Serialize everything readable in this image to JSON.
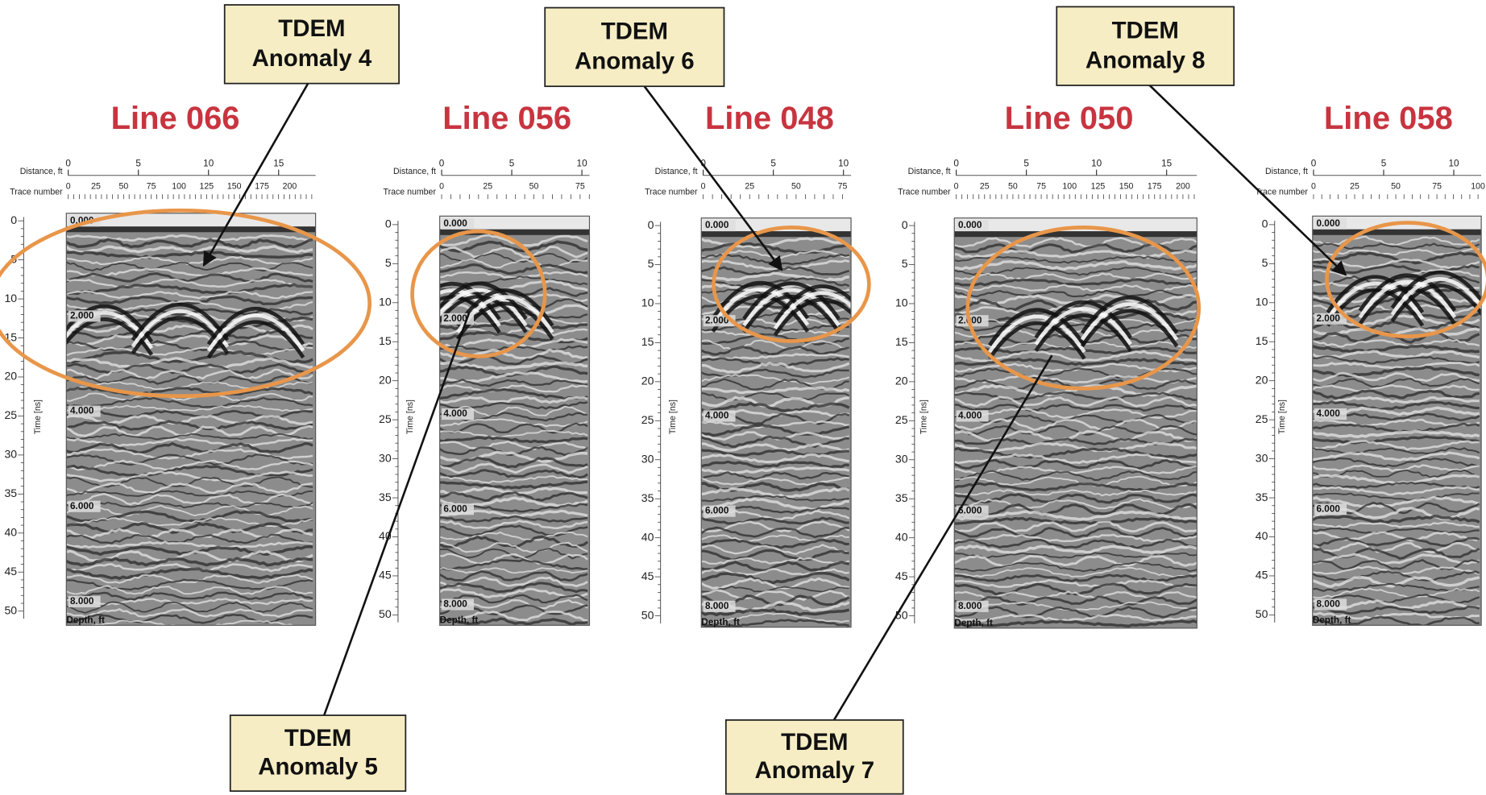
{
  "panels": [
    {
      "title": "Line 066",
      "distance_label": "Distance, ft",
      "distance_ticks": [
        0,
        5,
        10,
        15
      ],
      "trace_label": "Trace number",
      "trace_ticks": [
        0,
        25,
        50,
        75,
        100,
        125,
        150,
        175,
        200
      ],
      "time_label": "Time [ns]",
      "time_ticks": [
        0,
        5,
        10,
        15,
        20,
        25,
        30,
        35,
        40,
        45,
        50
      ],
      "depth_ticks": [
        "0.000",
        "2.000",
        "4.000",
        "6.000",
        "8.000"
      ],
      "depth_label": "Depth, ft"
    },
    {
      "title": "Line 056",
      "distance_label": "Distance, ft",
      "distance_ticks": [
        0,
        5,
        10
      ],
      "trace_label": "Trace number",
      "trace_ticks": [
        0,
        25,
        50,
        75
      ],
      "time_label": "Time [ns]",
      "time_ticks": [
        0,
        5,
        10,
        15,
        20,
        25,
        30,
        35,
        40,
        45,
        50
      ],
      "depth_ticks": [
        "0.000",
        "2.000",
        "4.000",
        "6.000",
        "8.000"
      ],
      "depth_label": "Depth, ft"
    },
    {
      "title": "Line 048",
      "distance_label": "Distance, ft",
      "distance_ticks": [
        0,
        5,
        10
      ],
      "trace_label": "Trace number",
      "trace_ticks": [
        0,
        25,
        50,
        75
      ],
      "time_label": "Time [ns]",
      "time_ticks": [
        0,
        5,
        10,
        15,
        20,
        25,
        30,
        35,
        40,
        45,
        50
      ],
      "depth_ticks": [
        "0.000",
        "2.000",
        "4.000",
        "6.000",
        "8.000"
      ],
      "depth_label": "Depth, ft"
    },
    {
      "title": "Line 050",
      "distance_label": "Distance, ft",
      "distance_ticks": [
        0,
        5,
        10,
        15
      ],
      "trace_label": "Trace number",
      "trace_ticks": [
        0,
        25,
        50,
        75,
        100,
        125,
        150,
        175,
        200
      ],
      "time_label": "Time [ns]",
      "time_ticks": [
        0,
        5,
        10,
        15,
        20,
        25,
        30,
        35,
        40,
        45,
        50
      ],
      "depth_ticks": [
        "0.000",
        "2.000",
        "4.000",
        "6.000",
        "8.000"
      ],
      "depth_label": "Depth, ft"
    },
    {
      "title": "Line 058",
      "distance_label": "Distance, ft",
      "distance_ticks": [
        0,
        5,
        10
      ],
      "trace_label": "Trace number",
      "trace_ticks": [
        0,
        25,
        50,
        75,
        100
      ],
      "time_label": "Time [ns]",
      "time_ticks": [
        0,
        5,
        10,
        15,
        20,
        25,
        30,
        35,
        40,
        45,
        50
      ],
      "depth_ticks": [
        "0.000",
        "2.000",
        "4.000",
        "6.000",
        "8.000"
      ],
      "depth_label": "Depth, ft"
    }
  ],
  "callouts": [
    {
      "lines": [
        "TDEM",
        "Anomaly 4"
      ]
    },
    {
      "lines": [
        "TDEM",
        "Anomaly 5"
      ]
    },
    {
      "lines": [
        "TDEM",
        "Anomaly 6"
      ]
    },
    {
      "lines": [
        "TDEM",
        "Anomaly 7"
      ]
    },
    {
      "lines": [
        "TDEM",
        "Anomaly 8"
      ]
    }
  ]
}
